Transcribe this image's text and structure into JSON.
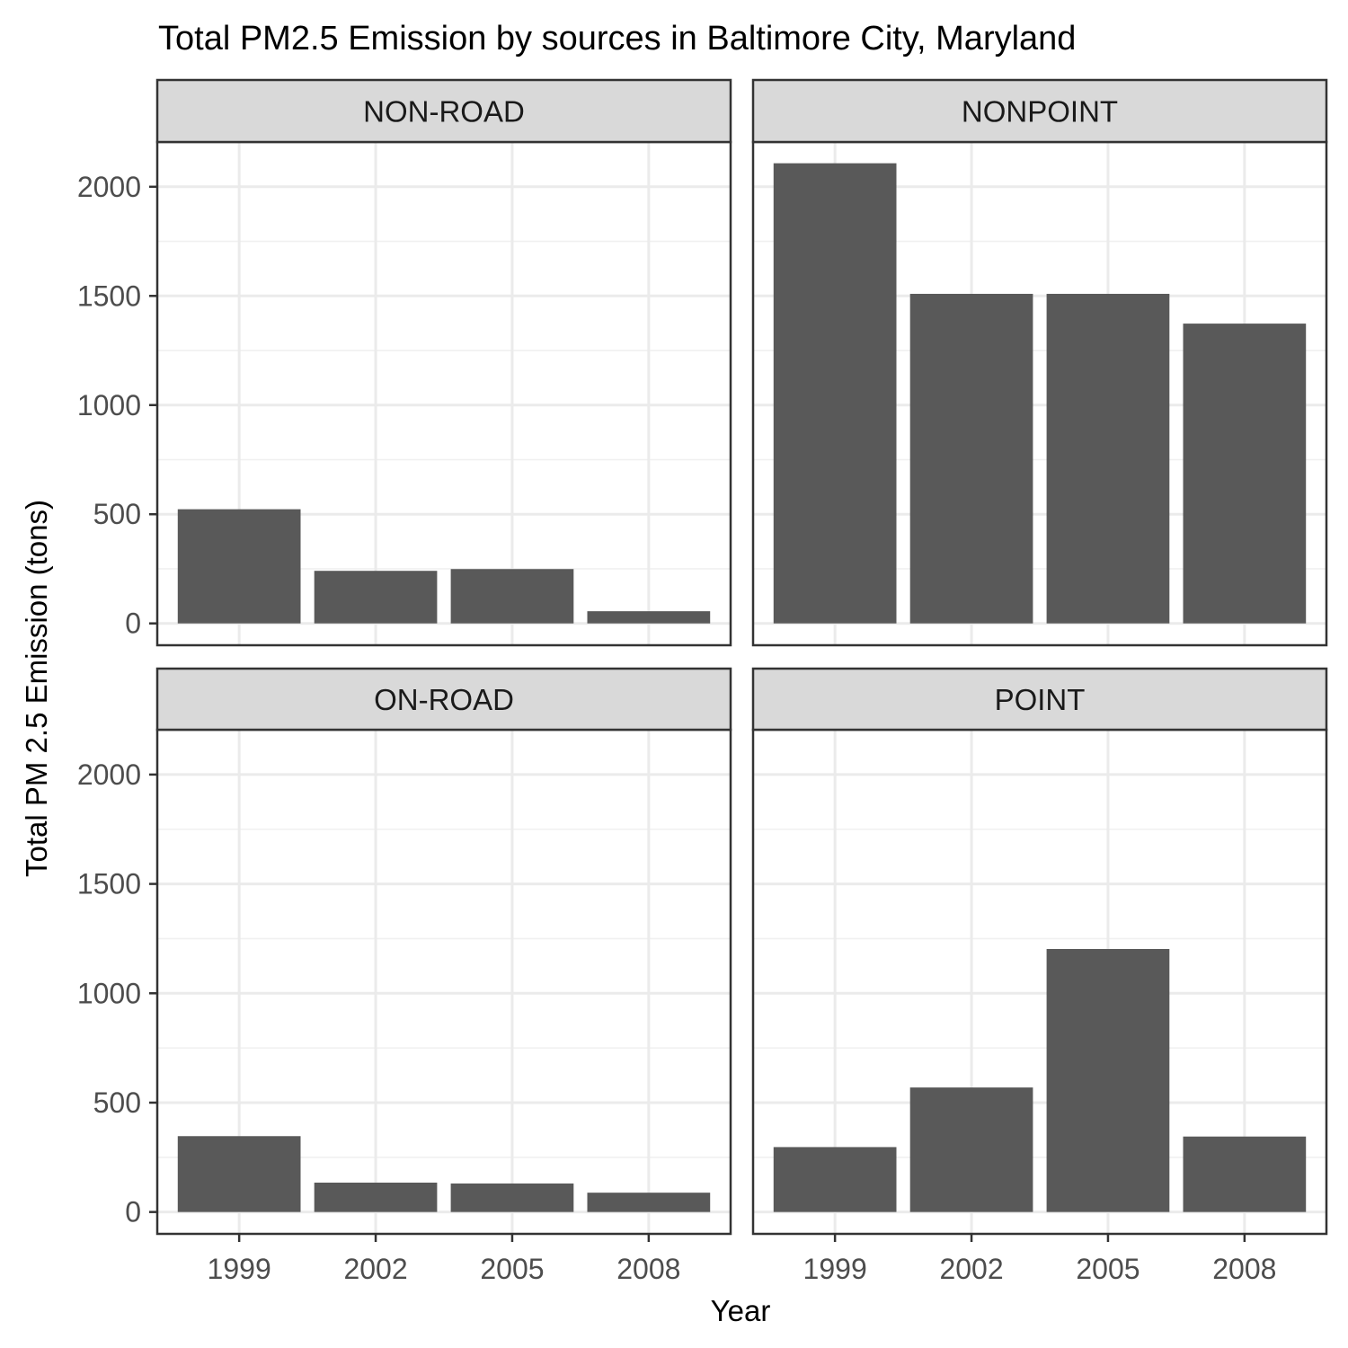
{
  "chart_data": {
    "type": "bar",
    "title": "Total PM2.5 Emission by sources in Baltimore City, Maryland",
    "xlabel": "Year",
    "ylabel": "Total PM 2.5 Emission (tons)",
    "categories": [
      "1999",
      "2002",
      "2005",
      "2008"
    ],
    "y_ticks": [
      0,
      500,
      1000,
      1500,
      2000
    ],
    "ylim": [
      -100,
      2205
    ],
    "grid": true,
    "bar_color": "#595959",
    "facet_layout": "2x2",
    "facets": [
      {
        "name": "NON-ROAD",
        "values": [
          522.9,
          240.8,
          248.9,
          55.8
        ]
      },
      {
        "name": "NONPOINT",
        "values": [
          2107.6,
          1509.5,
          1509.5,
          1373.2
        ]
      },
      {
        "name": "ON-ROAD",
        "values": [
          346.8,
          134.3,
          130.4,
          88.3
        ]
      },
      {
        "name": "POINT",
        "values": [
          296.8,
          569.3,
          1202.5,
          344.98
        ]
      }
    ]
  }
}
